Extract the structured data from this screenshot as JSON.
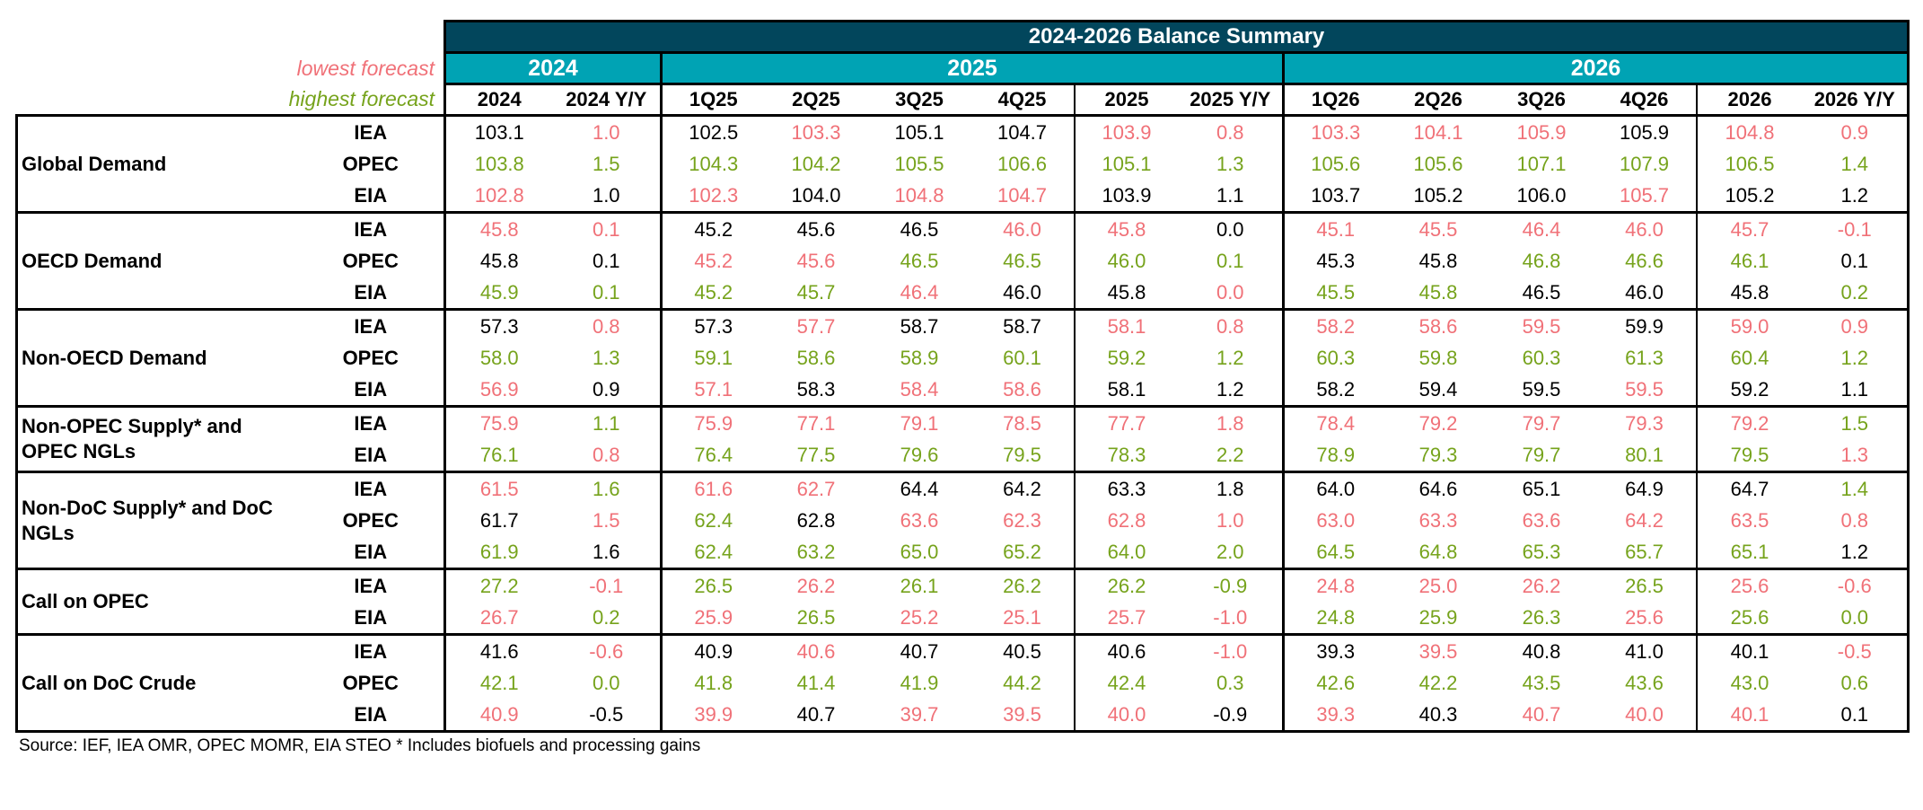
{
  "title": "2024-2026 Balance Summary",
  "legend": {
    "lowest": "lowest forecast",
    "highest": "highest forecast",
    "lowest_color": "#f07178",
    "highest_color": "#76a31c"
  },
  "colors": {
    "title_bg": "#02465c",
    "year_bg": "#00a3b4"
  },
  "years": [
    "2024",
    "2025",
    "2026"
  ],
  "columns": [
    "2024",
    "2024 Y/Y",
    "1Q25",
    "2Q25",
    "3Q25",
    "4Q25",
    "2025",
    "2025 Y/Y",
    "1Q26",
    "2Q26",
    "3Q26",
    "4Q26",
    "2026",
    "2026 Y/Y"
  ],
  "color_key": {
    "r": "lowest forecast",
    "g": "highest forecast",
    "k": "neutral"
  },
  "sections": [
    {
      "name": "Global Demand",
      "rows": [
        {
          "source": "IEA",
          "values": [
            "103.1",
            "1.0",
            "102.5",
            "103.3",
            "105.1",
            "104.7",
            "103.9",
            "0.8",
            "103.3",
            "104.1",
            "105.9",
            "105.9",
            "104.8",
            "0.9"
          ],
          "colors": "krkrkkrrrrrkrr"
        },
        {
          "source": "OPEC",
          "values": [
            "103.8",
            "1.5",
            "104.3",
            "104.2",
            "105.5",
            "106.6",
            "105.1",
            "1.3",
            "105.6",
            "105.6",
            "107.1",
            "107.9",
            "106.5",
            "1.4"
          ],
          "colors": "gggggggggggggg"
        },
        {
          "source": "EIA",
          "values": [
            "102.8",
            "1.0",
            "102.3",
            "104.0",
            "104.8",
            "104.7",
            "103.9",
            "1.1",
            "103.7",
            "105.2",
            "106.0",
            "105.7",
            "105.2",
            "1.2"
          ],
          "colors": "rkrkrrkkkkkrkk"
        }
      ]
    },
    {
      "name": "OECD Demand",
      "rows": [
        {
          "source": "IEA",
          "values": [
            "45.8",
            "0.1",
            "45.2",
            "45.6",
            "46.5",
            "46.0",
            "45.8",
            "0.0",
            "45.1",
            "45.5",
            "46.4",
            "46.0",
            "45.7",
            "-0.1"
          ],
          "colors": "rrkkkrrkrrrrrr"
        },
        {
          "source": "OPEC",
          "values": [
            "45.8",
            "0.1",
            "45.2",
            "45.6",
            "46.5",
            "46.5",
            "46.0",
            "0.1",
            "45.3",
            "45.8",
            "46.8",
            "46.6",
            "46.1",
            "0.1"
          ],
          "colors": "kkrrggggkkgggk"
        },
        {
          "source": "EIA",
          "values": [
            "45.9",
            "0.1",
            "45.2",
            "45.7",
            "46.4",
            "46.0",
            "45.8",
            "0.0",
            "45.5",
            "45.8",
            "46.5",
            "46.0",
            "45.8",
            "0.2"
          ],
          "colors": "ggggrkkrggkkkg"
        }
      ]
    },
    {
      "name": "Non-OECD Demand",
      "rows": [
        {
          "source": "IEA",
          "values": [
            "57.3",
            "0.8",
            "57.3",
            "57.7",
            "58.7",
            "58.7",
            "58.1",
            "0.8",
            "58.2",
            "58.6",
            "59.5",
            "59.9",
            "59.0",
            "0.9"
          ],
          "colors": "krkrkkrrrrrkrr"
        },
        {
          "source": "OPEC",
          "values": [
            "58.0",
            "1.3",
            "59.1",
            "58.6",
            "58.9",
            "60.1",
            "59.2",
            "1.2",
            "60.3",
            "59.8",
            "60.3",
            "61.3",
            "60.4",
            "1.2"
          ],
          "colors": "gggggggggggggg"
        },
        {
          "source": "EIA",
          "values": [
            "56.9",
            "0.9",
            "57.1",
            "58.3",
            "58.4",
            "58.6",
            "58.1",
            "1.2",
            "58.2",
            "59.4",
            "59.5",
            "59.5",
            "59.2",
            "1.1"
          ],
          "colors": "rkrkrrkkkkkrkk"
        }
      ]
    },
    {
      "name": "Non-OPEC Supply* and OPEC NGLs",
      "rows": [
        {
          "source": "IEA",
          "values": [
            "75.9",
            "1.1",
            "75.9",
            "77.1",
            "79.1",
            "78.5",
            "77.7",
            "1.8",
            "78.4",
            "79.2",
            "79.7",
            "79.3",
            "79.2",
            "1.5"
          ],
          "colors": "rgrrrrrrrrrrrg"
        },
        {
          "source": "EIA",
          "values": [
            "76.1",
            "0.8",
            "76.4",
            "77.5",
            "79.6",
            "79.5",
            "78.3",
            "2.2",
            "78.9",
            "79.3",
            "79.7",
            "80.1",
            "79.5",
            "1.3"
          ],
          "colors": "grgggggggggggr"
        }
      ]
    },
    {
      "name": "Non-DoC Supply* and DoC NGLs",
      "rows": [
        {
          "source": "IEA",
          "values": [
            "61.5",
            "1.6",
            "61.6",
            "62.7",
            "64.4",
            "64.2",
            "63.3",
            "1.8",
            "64.0",
            "64.6",
            "65.1",
            "64.9",
            "64.7",
            "1.4"
          ],
          "colors": "rgrrkkkkkkkkkg"
        },
        {
          "source": "OPEC",
          "values": [
            "61.7",
            "1.5",
            "62.4",
            "62.8",
            "63.6",
            "62.3",
            "62.8",
            "1.0",
            "63.0",
            "63.3",
            "63.6",
            "64.2",
            "63.5",
            "0.8"
          ],
          "colors": "krgkrrrrrrrrrr"
        },
        {
          "source": "EIA",
          "values": [
            "61.9",
            "1.6",
            "62.4",
            "63.2",
            "65.0",
            "65.2",
            "64.0",
            "2.0",
            "64.5",
            "64.8",
            "65.3",
            "65.7",
            "65.1",
            "1.2"
          ],
          "colors": "gkgggggggggggk"
        }
      ]
    },
    {
      "name": "Call on OPEC",
      "rows": [
        {
          "source": "IEA",
          "values": [
            "27.2",
            "-0.1",
            "26.5",
            "26.2",
            "26.1",
            "26.2",
            "26.2",
            "-0.9",
            "24.8",
            "25.0",
            "26.2",
            "26.5",
            "25.6",
            "-0.6"
          ],
          "colors": "grgrggggrrrgrr"
        },
        {
          "source": "EIA",
          "values": [
            "26.7",
            "0.2",
            "25.9",
            "26.5",
            "25.2",
            "25.1",
            "25.7",
            "-1.0",
            "24.8",
            "25.9",
            "26.3",
            "25.6",
            "25.6",
            "0.0"
          ],
          "colors": "rgrgrrrrgggrgg"
        }
      ]
    },
    {
      "name": "Call on DoC Crude",
      "rows": [
        {
          "source": "IEA",
          "values": [
            "41.6",
            "-0.6",
            "40.9",
            "40.6",
            "40.7",
            "40.5",
            "40.6",
            "-1.0",
            "39.3",
            "39.5",
            "40.8",
            "41.0",
            "40.1",
            "-0.5"
          ],
          "colors": "krkrkkkrkrkkkr"
        },
        {
          "source": "OPEC",
          "values": [
            "42.1",
            "0.0",
            "41.8",
            "41.4",
            "41.9",
            "44.2",
            "42.4",
            "0.3",
            "42.6",
            "42.2",
            "43.5",
            "43.6",
            "43.0",
            "0.6"
          ],
          "colors": "gggggggggggggg"
        },
        {
          "source": "EIA",
          "values": [
            "40.9",
            "-0.5",
            "39.9",
            "40.7",
            "39.7",
            "39.5",
            "40.0",
            "-0.9",
            "39.3",
            "40.3",
            "40.7",
            "40.0",
            "40.1",
            "0.1"
          ],
          "colors": "rkrkrrrkrkrrrk"
        }
      ]
    }
  ],
  "footnote": "Source: IEF, IEA OMR, OPEC MOMR, EIA STEO  * Includes biofuels and processing gains"
}
